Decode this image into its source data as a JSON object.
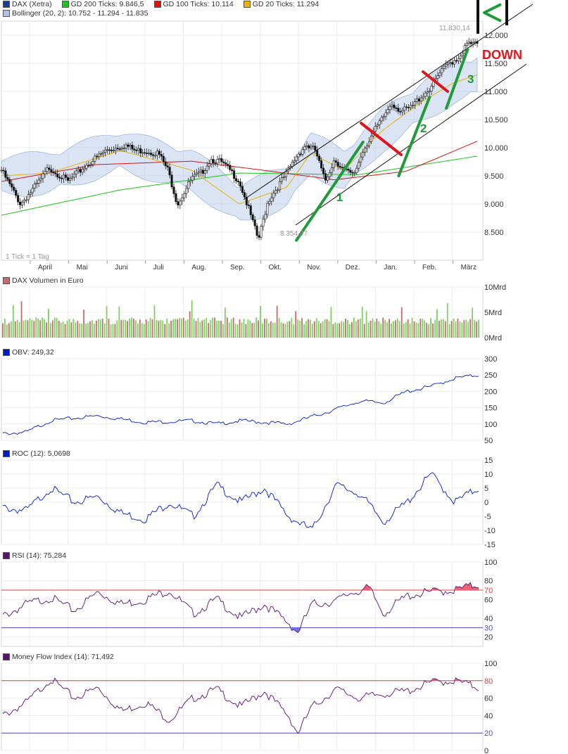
{
  "colors": {
    "gd200": "#1bc41b",
    "gd100": "#d41414",
    "gd20": "#e8b400",
    "bollinger": "#aec4e6",
    "obv": "#0019d1",
    "roc": "#0019d1",
    "rsi": "#5b0f76",
    "mfi": "#5b0f76",
    "upper_threshold": "#e03b3b",
    "lower_threshold": "#4a4ad8",
    "trend_green": "#1f9b3a",
    "trend_red": "#e0141b",
    "down_label": "#e5141b",
    "volume_up": "#7fcf63",
    "volume_down": "#c76a6a"
  },
  "main": {
    "legend": {
      "dax": "DAX (Xetra)",
      "gd200": "GD 200 Ticks: 9.846,5",
      "gd100": "GD 100 Ticks: 10.114",
      "gd20": "GD 20 Ticks: 11.294",
      "bollinger": "Bollinger (20, 2): 10.752 - 11.294 - 11.835"
    },
    "tick_note": "1 Tick = 1 Tag",
    "high_label": "11.830,14",
    "low_label": "8.354,97",
    "annotations": {
      "wave1": "1",
      "wave2": "2",
      "wave3": "3",
      "down": "DOWN"
    }
  },
  "volume": {
    "legend": "DAX Volumen in Euro"
  },
  "obv": {
    "legend": "OBV: 249,32"
  },
  "roc": {
    "legend": "ROC (12): 5,0698"
  },
  "rsi": {
    "legend": "RSI (14): 75,284"
  },
  "mfi": {
    "legend": "Money Flow Index (14): 71,492"
  },
  "chart_data": [
    {
      "type": "candlestick",
      "title": "DAX (Xetra)",
      "x_labels": [
        "April",
        "Mai",
        "Juni",
        "Juli",
        "Aug.",
        "Sep.",
        "Okt.",
        "Nov.",
        "Dez.",
        "Jan.",
        "Feb.",
        "März"
      ],
      "y_ticks": [
        "8.500",
        "9.000",
        "9.500",
        "10.000",
        "10.500",
        "11.000",
        "11.500",
        "12.000"
      ],
      "ylim": [
        8000,
        12250
      ],
      "close_path": {
        "x": [
          0,
          0.04,
          0.08,
          0.1,
          0.14,
          0.18,
          0.22,
          0.26,
          0.28,
          0.3,
          0.33,
          0.35,
          0.37,
          0.4,
          0.42,
          0.44,
          0.46,
          0.48,
          0.5,
          0.52,
          0.54,
          0.56,
          0.58,
          0.6,
          0.62,
          0.64,
          0.66,
          0.68,
          0.7,
          0.72,
          0.74,
          0.76,
          0.78,
          0.8,
          0.82,
          0.84,
          0.86,
          0.88,
          0.9,
          0.92,
          0.94,
          0.96,
          0.98,
          1.0
        ],
        "y": [
          9600,
          9000,
          9400,
          9650,
          9400,
          9700,
          9950,
          10050,
          9950,
          9950,
          9900,
          9600,
          9000,
          9450,
          9550,
          9800,
          9750,
          9600,
          9400,
          8900,
          8355,
          9050,
          9300,
          9550,
          9850,
          10050,
          9950,
          9400,
          9800,
          9600,
          9500,
          9950,
          10250,
          10500,
          10800,
          10650,
          10700,
          10900,
          11050,
          11300,
          11500,
          11600,
          11850,
          11830
        ]
      },
      "gd200_path": {
        "x": [
          0,
          0.25,
          0.5,
          0.75,
          1.0
        ],
        "y": [
          8800,
          9250,
          9550,
          9520,
          9850
        ]
      },
      "gd100_path": {
        "x": [
          0,
          0.2,
          0.4,
          0.55,
          0.7,
          0.85,
          1.0
        ],
        "y": [
          9400,
          9700,
          9760,
          9600,
          9430,
          9580,
          10114
        ]
      },
      "gd20_path": {
        "x": [
          0,
          0.1,
          0.25,
          0.4,
          0.5,
          0.6,
          0.65,
          0.72,
          0.8,
          0.88,
          0.95,
          1.0
        ],
        "y": [
          9500,
          9550,
          9950,
          9600,
          9000,
          9300,
          9900,
          9600,
          10300,
          10800,
          11150,
          11294
        ]
      },
      "trend_lines": [
        {
          "name": "wave1",
          "x": [
            0.62,
            0.76
          ],
          "y": [
            8355,
            10100
          ]
        },
        {
          "name": "wave2",
          "x": [
            0.835,
            0.9
          ],
          "y": [
            9500,
            10900
          ]
        },
        {
          "name": "wave3",
          "x": [
            0.935,
            0.98
          ],
          "y": [
            10700,
            11750
          ]
        }
      ]
    },
    {
      "type": "bar",
      "title": "DAX Volumen in Euro",
      "y_ticks": [
        "0Mrd",
        "5Mrd",
        "10Mrd"
      ],
      "ylim": [
        0,
        10
      ]
    },
    {
      "type": "line",
      "title": "OBV: 249,32",
      "y_ticks": [
        "50",
        "100",
        "150",
        "200",
        "250",
        "300"
      ],
      "ylim": [
        50,
        300
      ],
      "path": {
        "x": [
          0,
          0.05,
          0.1,
          0.2,
          0.3,
          0.4,
          0.45,
          0.5,
          0.6,
          0.7,
          0.75,
          0.8,
          0.85,
          0.9,
          0.95,
          1.0
        ],
        "y": [
          70,
          75,
          110,
          125,
          105,
          110,
          100,
          110,
          100,
          145,
          170,
          165,
          200,
          215,
          240,
          250
        ]
      }
    },
    {
      "type": "line",
      "title": "ROC (12): 5,0698",
      "y_ticks": [
        "-15",
        "-10",
        "-5",
        "0",
        "5",
        "10",
        "15"
      ],
      "ylim": [
        -15,
        15
      ],
      "path": {
        "x": [
          0,
          0.05,
          0.1,
          0.15,
          0.2,
          0.25,
          0.3,
          0.35,
          0.4,
          0.45,
          0.5,
          0.55,
          0.6,
          0.65,
          0.7,
          0.75,
          0.8,
          0.85,
          0.9,
          0.95,
          1.0
        ],
        "y": [
          -2,
          -3,
          5,
          0,
          2,
          -4,
          -6,
          0,
          -5,
          6,
          0,
          5,
          -5,
          -10,
          6,
          3,
          -7,
          0,
          10,
          0,
          5
        ]
      }
    },
    {
      "type": "line",
      "title": "RSI (14): 75,284",
      "y_ticks": [
        "20",
        "30",
        "40",
        "60",
        "70",
        "80",
        "100"
      ],
      "thresholds": [
        70,
        30
      ],
      "ylim": [
        10,
        100
      ],
      "path": {
        "x": [
          0,
          0.05,
          0.1,
          0.15,
          0.2,
          0.25,
          0.3,
          0.35,
          0.4,
          0.45,
          0.5,
          0.55,
          0.6,
          0.62,
          0.65,
          0.7,
          0.73,
          0.77,
          0.8,
          0.85,
          0.9,
          0.95,
          1.0
        ],
        "y": [
          42,
          55,
          62,
          48,
          68,
          55,
          60,
          70,
          45,
          60,
          40,
          55,
          35,
          25,
          55,
          58,
          67,
          72,
          45,
          64,
          68,
          70,
          76
        ]
      }
    },
    {
      "type": "line",
      "title": "Money Flow Index (14): 71,492",
      "y_ticks": [
        "0",
        "20",
        "40",
        "60",
        "80",
        "100"
      ],
      "thresholds": [
        80,
        20
      ],
      "ylim": [
        0,
        100
      ],
      "path": {
        "x": [
          0,
          0.05,
          0.1,
          0.15,
          0.2,
          0.25,
          0.3,
          0.35,
          0.4,
          0.45,
          0.5,
          0.55,
          0.6,
          0.62,
          0.65,
          0.7,
          0.75,
          0.8,
          0.85,
          0.9,
          0.95,
          1.0
        ],
        "y": [
          40,
          55,
          82,
          60,
          72,
          45,
          55,
          35,
          60,
          70,
          50,
          68,
          40,
          20,
          50,
          70,
          60,
          65,
          68,
          78,
          80,
          72
        ]
      }
    }
  ]
}
